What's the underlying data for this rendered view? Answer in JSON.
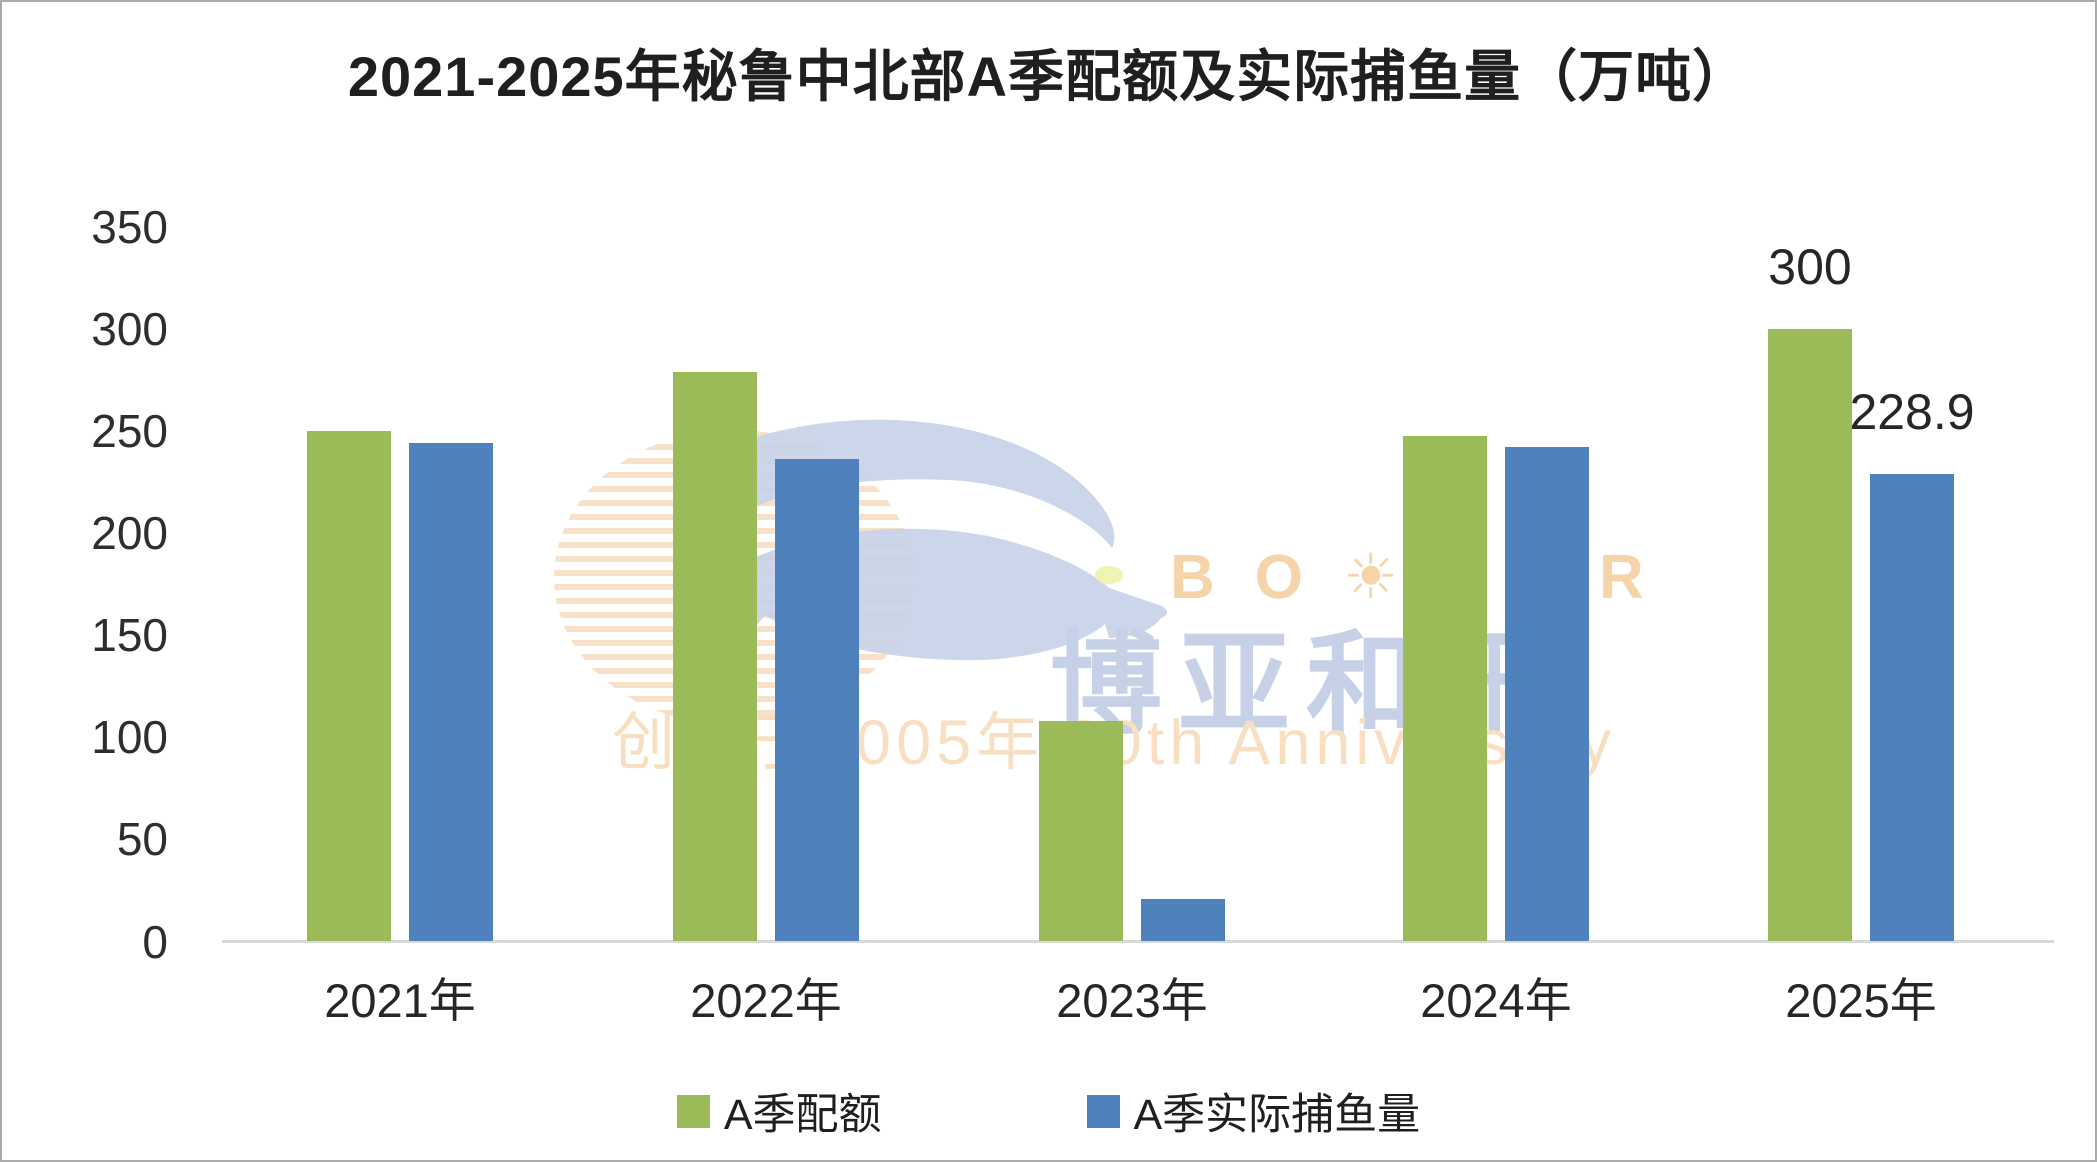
{
  "title": "2021-2025年秘鲁中北部A季配额及实际捕鱼量（万吨）",
  "chart_data": {
    "type": "bar",
    "title": "2021-2025年秘鲁中北部A季配额及实际捕鱼量（万吨）",
    "unit": "万吨",
    "categories": [
      "2021年",
      "2022年",
      "2023年",
      "2024年",
      "2025年"
    ],
    "series": [
      {
        "name": "A季配额",
        "color": "#9bbb59",
        "values": [
          250,
          279,
          108,
          247.5,
          300
        ]
      },
      {
        "name": "A季实际捕鱼量",
        "color": "#4f81bd",
        "values": [
          244,
          236.5,
          21,
          242,
          228.9
        ]
      }
    ],
    "data_labels": [
      {
        "series": 0,
        "index": 4,
        "text": "300"
      },
      {
        "series": 1,
        "index": 4,
        "text": "228.9"
      }
    ],
    "ylim": [
      0,
      350
    ],
    "ytick_step": 50,
    "yticks": [
      "0",
      "50",
      "100",
      "150",
      "200",
      "250",
      "300",
      "350"
    ],
    "grid": false,
    "legend_position": "bottom",
    "axis_line_color": "#d9d9d9"
  },
  "legend": {
    "items": [
      {
        "label": "A季配额",
        "color": "#9bbb59"
      },
      {
        "label": "A季实际捕鱼量",
        "color": "#4f81bd"
      }
    ]
  },
  "watermark": {
    "brand_latin": "BO☀YAR",
    "brand_cn": "博亚和讯",
    "anniversary": "创立于2005年 20th Anniversary",
    "colors": {
      "bird": "#c7d2e9",
      "latin_text": "#f5d4a9",
      "cn_text": "#c6d1e8",
      "anniversary_text": "#f8dfc2",
      "eye": "#edf3a9"
    }
  }
}
